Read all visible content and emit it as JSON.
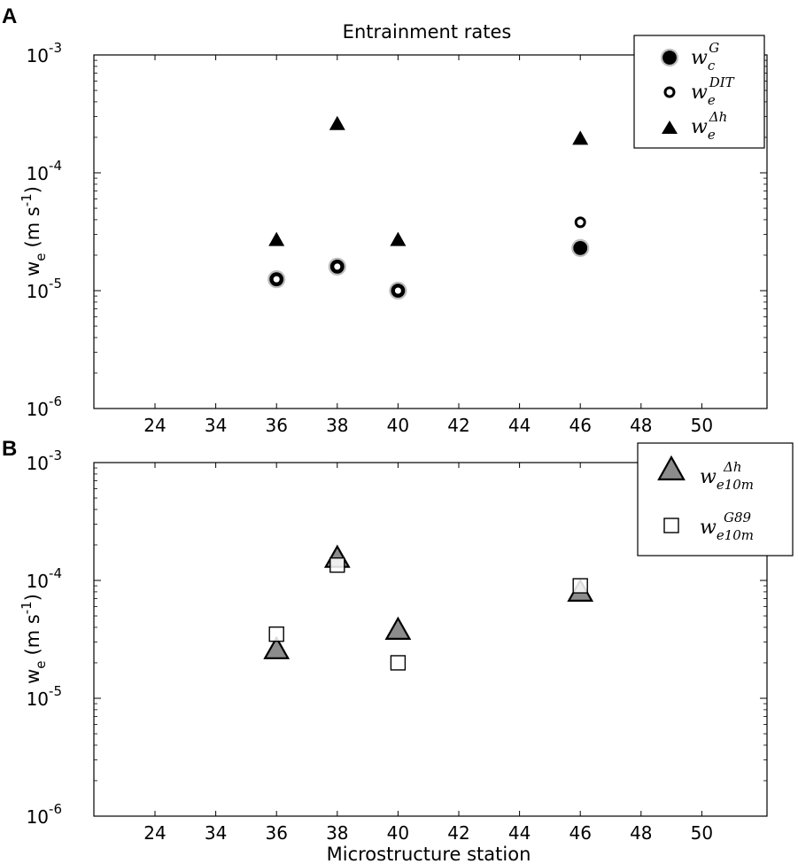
{
  "chart_data": [
    {
      "panel": "A",
      "type": "scatter",
      "title": "Entrainment rates",
      "xlabel": "",
      "ylabel": "w_e (m s^-1)",
      "ylabel_main": "w",
      "ylabel_sub": "e",
      "ylabel_units": "(m s",
      "ylabel_units_sup": "-1",
      "ylabel_units_end": ")",
      "y_scale": "log",
      "ylim": [
        1e-06,
        0.001
      ],
      "x_tick_labels": [
        "24",
        "34",
        "36",
        "38",
        "40",
        "42",
        "44",
        "46",
        "48",
        "50"
      ],
      "y_ticks": [
        {
          "base": "10",
          "exp": "-3"
        },
        {
          "base": "10",
          "exp": "-4"
        },
        {
          "base": "10",
          "exp": "-5"
        },
        {
          "base": "10",
          "exp": "-6"
        }
      ],
      "legend_position": "top-right",
      "grid": false,
      "categories": [
        "36",
        "38",
        "40",
        "46"
      ],
      "series": [
        {
          "name": "w_c^G",
          "label_main": "w",
          "label_sub": "c",
          "label_sup": "G",
          "marker": "filled-circle",
          "color": "#000000",
          "edge_color": "#bdbdbd",
          "values": [
            1.25e-05,
            1.6e-05,
            1e-05,
            2.3e-05
          ]
        },
        {
          "name": "w_e^DIT",
          "label_main": "w",
          "label_sub": "e",
          "label_sup": "DIT",
          "marker": "open-circle",
          "color": "#000000",
          "values": [
            1.25e-05,
            1.6e-05,
            1e-05,
            3.8e-05
          ]
        },
        {
          "name": "w_e^Δh",
          "label_main": "w",
          "label_sub": "e",
          "label_sup": "Δh",
          "marker": "filled-triangle",
          "color": "#000000",
          "values": [
            2.7e-05,
            0.00026,
            2.7e-05,
            0.000195
          ]
        }
      ]
    },
    {
      "panel": "B",
      "type": "scatter",
      "title": "",
      "xlabel": "Microstructure station",
      "ylabel": "w_e (m s^-1)",
      "ylabel_main": "w",
      "ylabel_sub": "e",
      "ylabel_units": "(m s",
      "ylabel_units_sup": "-1",
      "ylabel_units_end": ")",
      "y_scale": "log",
      "ylim": [
        1e-06,
        0.001
      ],
      "x_tick_labels": [
        "24",
        "34",
        "36",
        "38",
        "40",
        "42",
        "44",
        "46",
        "48",
        "50"
      ],
      "y_ticks": [
        {
          "base": "10",
          "exp": "-3"
        },
        {
          "base": "10",
          "exp": "-4"
        },
        {
          "base": "10",
          "exp": "-5"
        },
        {
          "base": "10",
          "exp": "-6"
        }
      ],
      "legend_position": "top-right",
      "grid": false,
      "categories": [
        "36",
        "38",
        "40",
        "46"
      ],
      "series": [
        {
          "name": "w_e10m^Δh",
          "label_main": "w",
          "label_sub": "e10m",
          "label_sup": "Δh",
          "marker": "gray-triangle",
          "color": "#8c8c8c",
          "values": [
            2.6e-05,
            0.000155,
            3.8e-05,
            8e-05
          ]
        },
        {
          "name": "w_e10m^G89",
          "label_main": "w",
          "label_sub": "e10m",
          "label_sup": "G89",
          "marker": "open-square",
          "color": "#000000",
          "values": [
            3.5e-05,
            0.000135,
            2e-05,
            9e-05
          ]
        }
      ]
    }
  ]
}
